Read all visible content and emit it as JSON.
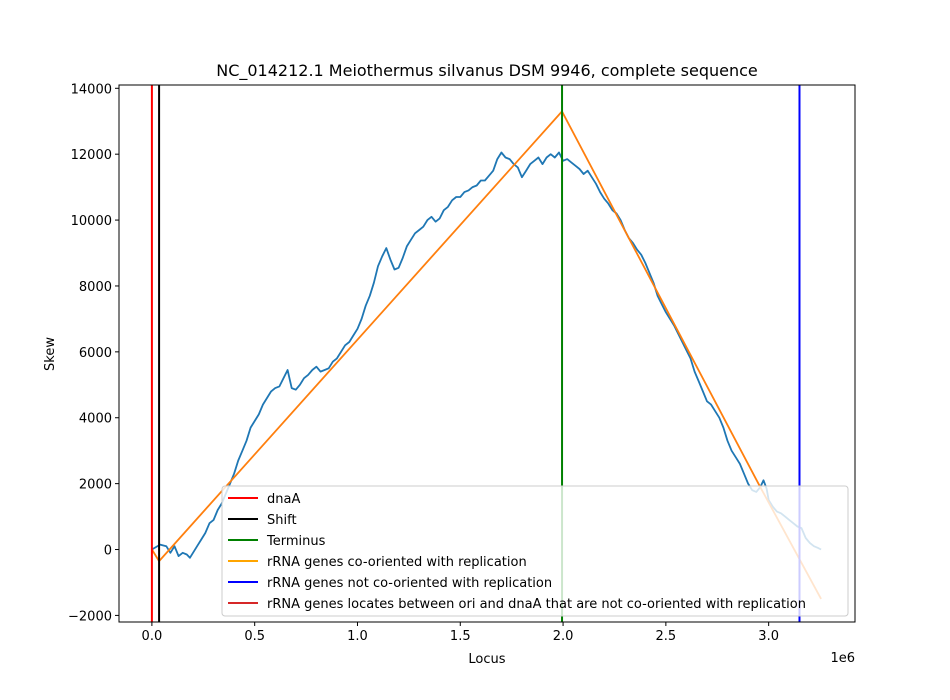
{
  "chart_data": {
    "type": "line",
    "title": "NC_014212.1 Meiothermus silvanus DSM 9946, complete sequence",
    "xlabel": "Locus",
    "ylabel": "Skew",
    "x_offset_label": "1e6",
    "xlim": [
      -160000,
      3420000
    ],
    "ylim": [
      -2200,
      14100
    ],
    "x_ticks": [
      0,
      500000,
      1000000,
      1500000,
      2000000,
      2500000,
      3000000
    ],
    "x_tick_labels": [
      "0.0",
      "0.5",
      "1.0",
      "1.5",
      "2.0",
      "2.5",
      "3.0"
    ],
    "y_ticks": [
      -2000,
      0,
      2000,
      4000,
      6000,
      8000,
      10000,
      12000,
      14000
    ],
    "y_tick_labels": [
      "−2000",
      "0",
      "2000",
      "4000",
      "6000",
      "8000",
      "10000",
      "12000",
      "14000"
    ],
    "series": [
      {
        "color": "#1f77b4",
        "points": [
          [
            0,
            0
          ],
          [
            40000,
            150
          ],
          [
            70000,
            100
          ],
          [
            90000,
            -100
          ],
          [
            110000,
            100
          ],
          [
            130000,
            -200
          ],
          [
            150000,
            -100
          ],
          [
            170000,
            -150
          ],
          [
            185000,
            -250
          ],
          [
            200000,
            -100
          ],
          [
            220000,
            100
          ],
          [
            240000,
            300
          ],
          [
            260000,
            500
          ],
          [
            280000,
            800
          ],
          [
            300000,
            900
          ],
          [
            320000,
            1200
          ],
          [
            340000,
            1400
          ],
          [
            360000,
            1700
          ],
          [
            380000,
            2000
          ],
          [
            400000,
            2300
          ],
          [
            420000,
            2700
          ],
          [
            440000,
            3000
          ],
          [
            460000,
            3300
          ],
          [
            480000,
            3700
          ],
          [
            500000,
            3900
          ],
          [
            520000,
            4100
          ],
          [
            540000,
            4400
          ],
          [
            560000,
            4600
          ],
          [
            580000,
            4800
          ],
          [
            600000,
            4900
          ],
          [
            620000,
            4950
          ],
          [
            640000,
            5200
          ],
          [
            660000,
            5450
          ],
          [
            680000,
            4900
          ],
          [
            700000,
            4850
          ],
          [
            720000,
            5000
          ],
          [
            740000,
            5200
          ],
          [
            760000,
            5300
          ],
          [
            780000,
            5450
          ],
          [
            800000,
            5550
          ],
          [
            820000,
            5400
          ],
          [
            840000,
            5450
          ],
          [
            860000,
            5500
          ],
          [
            880000,
            5700
          ],
          [
            900000,
            5800
          ],
          [
            920000,
            6000
          ],
          [
            940000,
            6200
          ],
          [
            960000,
            6300
          ],
          [
            980000,
            6500
          ],
          [
            1000000,
            6700
          ],
          [
            1020000,
            7000
          ],
          [
            1040000,
            7400
          ],
          [
            1060000,
            7700
          ],
          [
            1080000,
            8100
          ],
          [
            1100000,
            8600
          ],
          [
            1120000,
            8900
          ],
          [
            1140000,
            9150
          ],
          [
            1160000,
            8800
          ],
          [
            1180000,
            8500
          ],
          [
            1200000,
            8550
          ],
          [
            1220000,
            8850
          ],
          [
            1240000,
            9200
          ],
          [
            1260000,
            9400
          ],
          [
            1280000,
            9600
          ],
          [
            1300000,
            9700
          ],
          [
            1320000,
            9800
          ],
          [
            1340000,
            10000
          ],
          [
            1360000,
            10100
          ],
          [
            1380000,
            9950
          ],
          [
            1400000,
            10050
          ],
          [
            1420000,
            10300
          ],
          [
            1440000,
            10400
          ],
          [
            1460000,
            10600
          ],
          [
            1480000,
            10700
          ],
          [
            1500000,
            10700
          ],
          [
            1520000,
            10850
          ],
          [
            1540000,
            10900
          ],
          [
            1560000,
            11000
          ],
          [
            1580000,
            11050
          ],
          [
            1600000,
            11200
          ],
          [
            1620000,
            11200
          ],
          [
            1640000,
            11350
          ],
          [
            1660000,
            11500
          ],
          [
            1680000,
            11850
          ],
          [
            1700000,
            12050
          ],
          [
            1720000,
            11900
          ],
          [
            1740000,
            11850
          ],
          [
            1760000,
            11700
          ],
          [
            1780000,
            11600
          ],
          [
            1800000,
            11300
          ],
          [
            1820000,
            11500
          ],
          [
            1840000,
            11700
          ],
          [
            1860000,
            11800
          ],
          [
            1880000,
            11900
          ],
          [
            1900000,
            11700
          ],
          [
            1920000,
            11900
          ],
          [
            1940000,
            12000
          ],
          [
            1960000,
            11900
          ],
          [
            1980000,
            12050
          ],
          [
            2000000,
            11800
          ],
          [
            2020000,
            11850
          ],
          [
            2040000,
            11750
          ],
          [
            2060000,
            11650
          ],
          [
            2080000,
            11550
          ],
          [
            2100000,
            11400
          ],
          [
            2120000,
            11500
          ],
          [
            2140000,
            11300
          ],
          [
            2160000,
            11100
          ],
          [
            2180000,
            10850
          ],
          [
            2200000,
            10650
          ],
          [
            2220000,
            10500
          ],
          [
            2240000,
            10300
          ],
          [
            2260000,
            10200
          ],
          [
            2280000,
            10000
          ],
          [
            2300000,
            9700
          ],
          [
            2320000,
            9450
          ],
          [
            2340000,
            9300
          ],
          [
            2360000,
            9100
          ],
          [
            2380000,
            8950
          ],
          [
            2400000,
            8700
          ],
          [
            2420000,
            8400
          ],
          [
            2440000,
            8100
          ],
          [
            2460000,
            7700
          ],
          [
            2480000,
            7450
          ],
          [
            2500000,
            7200
          ],
          [
            2520000,
            7000
          ],
          [
            2540000,
            6800
          ],
          [
            2560000,
            6550
          ],
          [
            2580000,
            6300
          ],
          [
            2600000,
            6050
          ],
          [
            2620000,
            5800
          ],
          [
            2640000,
            5400
          ],
          [
            2660000,
            5100
          ],
          [
            2680000,
            4800
          ],
          [
            2700000,
            4500
          ],
          [
            2720000,
            4400
          ],
          [
            2740000,
            4200
          ],
          [
            2760000,
            4000
          ],
          [
            2780000,
            3700
          ],
          [
            2800000,
            3300
          ],
          [
            2820000,
            3000
          ],
          [
            2840000,
            2800
          ],
          [
            2860000,
            2600
          ],
          [
            2880000,
            2300
          ],
          [
            2900000,
            2000
          ],
          [
            2920000,
            1800
          ],
          [
            2940000,
            1750
          ],
          [
            2960000,
            1900
          ],
          [
            2975000,
            2100
          ],
          [
            2990000,
            1850
          ],
          [
            3000000,
            1500
          ],
          [
            3020000,
            1300
          ],
          [
            3040000,
            1150
          ],
          [
            3060000,
            1100
          ],
          [
            3080000,
            1000
          ],
          [
            3100000,
            900
          ],
          [
            3120000,
            800
          ],
          [
            3140000,
            700
          ],
          [
            3160000,
            650
          ],
          [
            3180000,
            350
          ],
          [
            3200000,
            200
          ],
          [
            3220000,
            100
          ],
          [
            3240000,
            50
          ],
          [
            3255000,
            0
          ]
        ]
      },
      {
        "color": "#ff7f0e",
        "points": [
          [
            0,
            0
          ],
          [
            35000,
            -350
          ],
          [
            1995000,
            13300
          ],
          [
            2950000,
            2000
          ],
          [
            3255000,
            -1500
          ]
        ]
      }
    ],
    "vlines": [
      {
        "x": 0,
        "color": "#ff0000"
      },
      {
        "x": 35000,
        "color": "#000000"
      },
      {
        "x": 1995000,
        "color": "#008000"
      },
      {
        "x": 3150000,
        "color": "#0000ff"
      }
    ],
    "legend": {
      "placement": "lower-right",
      "entries": [
        {
          "label": "dnaA",
          "color": "#ff0000"
        },
        {
          "label": "Shift",
          "color": "#000000"
        },
        {
          "label": "Terminus",
          "color": "#008000"
        },
        {
          "label": "rRNA genes co-oriented with replication",
          "color": "#ffa500"
        },
        {
          "label": "rRNA genes not co-oriented with replication",
          "color": "#0000ff"
        },
        {
          "label": "rRNA genes locates between ori and dnaA that are not co-oriented with replication",
          "color": "#d62728"
        }
      ]
    }
  }
}
